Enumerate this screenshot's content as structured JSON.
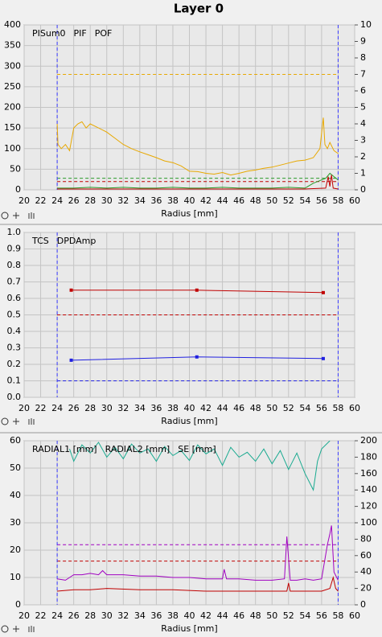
{
  "title": "Layer 0",
  "chart_data": [
    {
      "type": "line",
      "xlabel": "Radius [mm]",
      "xlim": [
        20,
        60
      ],
      "xticks": [
        20,
        22,
        24,
        26,
        28,
        30,
        32,
        34,
        36,
        38,
        40,
        42,
        44,
        46,
        48,
        50,
        52,
        54,
        56,
        58,
        60
      ],
      "ylim": [
        0,
        400
      ],
      "yticks": [
        0,
        50,
        100,
        150,
        200,
        250,
        300,
        350,
        400
      ],
      "y2lim": [
        0,
        10
      ],
      "y2ticks": [
        0,
        1,
        2,
        3,
        4,
        5,
        6,
        7,
        8,
        9,
        10
      ],
      "grid": true,
      "vlines": [
        24,
        58
      ],
      "vline_color": "#3a3aff",
      "thresholds": [
        {
          "value": 280,
          "color": "#e8a800"
        },
        {
          "value": 20,
          "color": "#c00000"
        },
        {
          "value": 0.7,
          "color": "#2a9a2a",
          "axis": "y2"
        }
      ],
      "series": [
        {
          "name": "PISum0",
          "color": "#e8a800",
          "x": [
            24,
            24.1,
            24.5,
            25,
            25.5,
            26,
            26.5,
            27,
            27.5,
            28,
            29,
            30,
            31,
            32,
            33,
            34,
            35,
            36,
            37,
            38,
            39,
            40,
            41,
            42,
            43,
            44,
            45,
            46,
            47,
            48,
            49,
            50,
            51,
            52,
            53,
            54,
            55,
            55.8,
            56.2,
            56.4,
            56.7,
            57,
            57.5,
            58
          ],
          "values": [
            160,
            110,
            100,
            110,
            95,
            150,
            160,
            165,
            150,
            160,
            150,
            140,
            125,
            110,
            100,
            92,
            85,
            78,
            70,
            66,
            58,
            45,
            44,
            40,
            38,
            42,
            36,
            40,
            45,
            48,
            52,
            55,
            60,
            65,
            70,
            72,
            78,
            100,
            175,
            110,
            100,
            115,
            95,
            88
          ]
        },
        {
          "name": "PIF",
          "color": "#2a9a2a",
          "axis": "y2",
          "x": [
            24,
            26,
            28,
            30,
            32,
            34,
            36,
            38,
            40,
            42,
            44,
            46,
            48,
            50,
            52,
            54,
            55,
            56,
            56.5,
            57,
            57.5,
            58
          ],
          "values": [
            0.1,
            0.1,
            0.15,
            0.1,
            0.15,
            0.1,
            0.1,
            0.15,
            0.1,
            0.1,
            0.15,
            0.1,
            0.1,
            0.1,
            0.15,
            0.1,
            0.4,
            0.6,
            0.7,
            1.0,
            0.8,
            0.6
          ]
        },
        {
          "name": "POF",
          "color": "#c00000",
          "axis": "y2",
          "x": [
            24,
            30,
            36,
            42,
            48,
            54,
            56.5,
            56.8,
            57,
            57.2,
            57.4,
            58
          ],
          "values": [
            0.05,
            0.05,
            0.05,
            0.05,
            0.05,
            0.05,
            0.1,
            0.8,
            0.2,
            0.9,
            0.1,
            0.05
          ]
        }
      ]
    },
    {
      "type": "line",
      "xlabel": "Radius [mm]",
      "xlim": [
        20,
        60
      ],
      "xticks": [
        20,
        22,
        24,
        26,
        28,
        30,
        32,
        34,
        36,
        38,
        40,
        42,
        44,
        46,
        48,
        50,
        52,
        54,
        56,
        58,
        60
      ],
      "ylim": [
        0,
        1
      ],
      "yticks": [
        {
          "value": 0,
          "label": "0.0"
        },
        0.1,
        0.2,
        0.3,
        0.4,
        0.5,
        0.6,
        0.7,
        0.8,
        0.9,
        {
          "value": 1,
          "label": "1.0"
        }
      ],
      "grid": true,
      "vlines": [
        24,
        58
      ],
      "vline_color": "#3a3aff",
      "markers": true,
      "thresholds": [
        {
          "value": 0.5,
          "color": "#c00000"
        },
        {
          "value": 0.1,
          "color": "#2020e0"
        }
      ],
      "series": [
        {
          "name": "TCS",
          "color": "#2020e0",
          "x": [
            25.7,
            40.9,
            56.2
          ],
          "values": [
            0.225,
            0.245,
            0.235
          ]
        },
        {
          "name": "DPDAmp",
          "color": "#c00000",
          "x": [
            25.7,
            40.9,
            56.2
          ],
          "values": [
            0.65,
            0.65,
            0.635
          ]
        }
      ]
    },
    {
      "type": "line",
      "xlabel": "Radius [mm]",
      "xlim": [
        20,
        60
      ],
      "xticks": [
        20,
        22,
        24,
        26,
        28,
        30,
        32,
        34,
        36,
        38,
        40,
        42,
        44,
        46,
        48,
        50,
        52,
        54,
        56,
        58,
        60
      ],
      "ylim": [
        0,
        60
      ],
      "yticks": [
        0,
        10,
        20,
        30,
        40,
        50,
        60
      ],
      "y2lim": [
        0,
        200
      ],
      "y2ticks": [
        0,
        20,
        40,
        60,
        80,
        100,
        120,
        140,
        160,
        180,
        200
      ],
      "grid": true,
      "vlines": [
        24,
        58
      ],
      "vline_color": "#3a3aff",
      "thresholds": [
        {
          "value": 22,
          "color": "#a000c0"
        },
        {
          "value": 16,
          "color": "#c00000"
        }
      ],
      "series": [
        {
          "name": "RADIAL1 [mm]",
          "color": "#a000c0",
          "x": [
            24,
            25,
            25.5,
            26,
            27,
            28,
            29,
            29.5,
            30,
            32,
            34,
            36,
            38,
            40,
            42,
            44,
            44.2,
            44.5,
            46,
            48,
            50,
            51.5,
            51.8,
            52.2,
            53,
            54,
            55,
            56,
            56.7,
            57,
            57.2,
            57.5,
            58
          ],
          "values": [
            9.5,
            9,
            10,
            11,
            11,
            11.5,
            11,
            12.5,
            11,
            11,
            10.5,
            10.5,
            10,
            10,
            9.5,
            9.5,
            13,
            9.5,
            9.5,
            9,
            9,
            9.5,
            25,
            9,
            9,
            9.5,
            9,
            9.5,
            22,
            26,
            29,
            12,
            9
          ]
        },
        {
          "name": "RADIAL2 [mm]",
          "color": "#c00000",
          "x": [
            24,
            26,
            28,
            30,
            34,
            38,
            42,
            46,
            50,
            51.8,
            52,
            52.2,
            54,
            56,
            57,
            57.4,
            57.7,
            58
          ],
          "values": [
            5,
            5.5,
            5.5,
            6,
            5.5,
            5.5,
            5,
            5,
            5,
            5,
            8,
            5,
            5,
            5,
            6,
            10,
            6,
            5
          ]
        },
        {
          "name": "SE [mm]",
          "color": "#1aaa90",
          "axis": "y2",
          "x": [
            25.5,
            26,
            27,
            28,
            29,
            30,
            31,
            32,
            33,
            34,
            35,
            36,
            37,
            38,
            39,
            40,
            41,
            42,
            43,
            44,
            45,
            46,
            47,
            48,
            49,
            50,
            51,
            52,
            53,
            54,
            55,
            55.5,
            56,
            57
          ],
          "values": [
            190,
            175,
            195,
            185,
            198,
            180,
            192,
            178,
            196,
            185,
            190,
            175,
            193,
            182,
            188,
            176,
            195,
            184,
            190,
            170,
            192,
            180,
            186,
            175,
            190,
            172,
            188,
            165,
            185,
            160,
            140,
            175,
            190,
            200
          ]
        }
      ]
    }
  ]
}
